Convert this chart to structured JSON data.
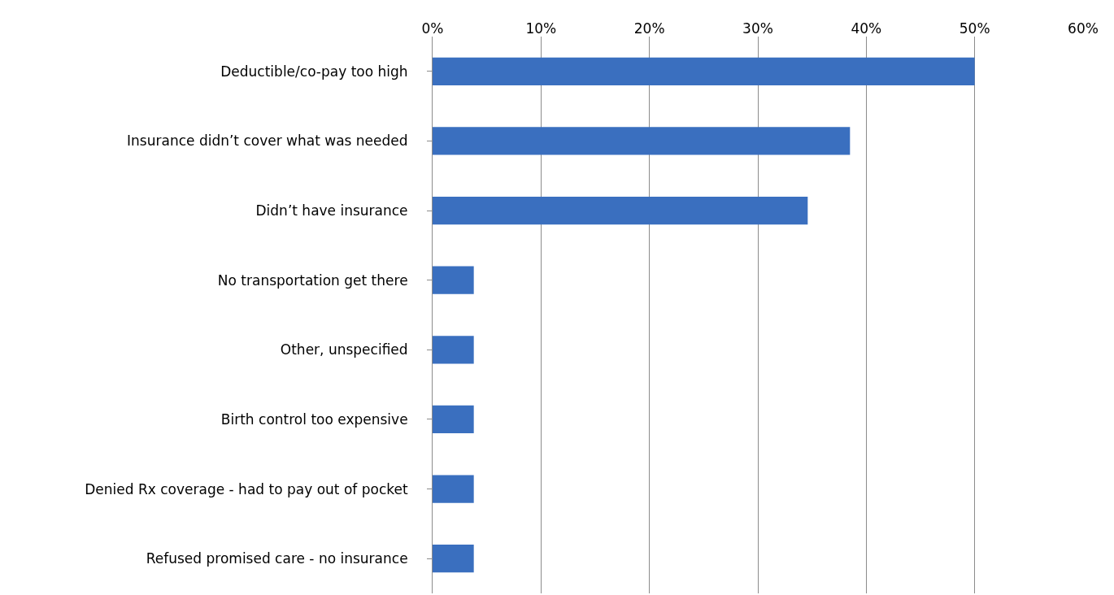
{
  "chart_data": {
    "type": "bar",
    "orientation": "horizontal",
    "categories": [
      "Deductible/co-pay too high",
      "Insurance didn’t cover what was needed",
      "Didn’t have insurance",
      "No transportation get there",
      "Other, unspecified",
      "Birth control too expensive",
      "Denied Rx coverage - had to pay out of pocket",
      "Refused promised care - no insurance"
    ],
    "values": [
      50,
      38.5,
      34.6,
      3.8,
      3.8,
      3.8,
      3.8,
      3.8
    ],
    "color": "#3a6fbf",
    "xlim": [
      0,
      60
    ],
    "xticks": [
      {
        "value": 0,
        "label": "0%"
      },
      {
        "value": 10,
        "label": "10%"
      },
      {
        "value": 20,
        "label": "20%"
      },
      {
        "value": 30,
        "label": "30%"
      },
      {
        "value": 40,
        "label": "40%"
      },
      {
        "value": 50,
        "label": "50%"
      },
      {
        "value": 60,
        "label": "60%"
      }
    ],
    "grid": "x"
  }
}
